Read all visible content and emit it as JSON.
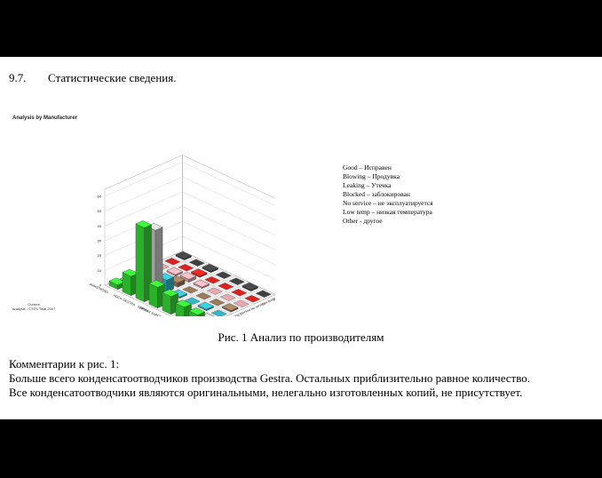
{
  "section": {
    "number": "9.7.",
    "title": "Статистические сведения."
  },
  "figure": {
    "title": "Analysis by Manufacturer",
    "footer_line1": "Current",
    "footer_line2": "Analysis - CTES Total 2007",
    "y_ticks": [
      "0",
      "10",
      "20",
      "30",
      "40",
      "50",
      "60"
    ],
    "right_ticks": [
      "0",
      "10",
      "20",
      "30",
      "40",
      "50"
    ],
    "right_axis_label": "Trap Count",
    "manufacturer_labels": [
      "ARMSTRONG",
      "ADCA",
      "GESTRA",
      "SPIRAX",
      "SPIRAX SARCO",
      "TLV",
      "Other"
    ],
    "condition_labels": [
      "Good",
      "Blowing",
      "Leaking",
      "Blocked",
      "No service",
      "Low temp",
      "Other"
    ],
    "colors": {
      "green": "#33dd33",
      "gray": "#c8c8c8",
      "cyan": "#33b8c8",
      "brown": "#9a7a5a",
      "pink": "#e8a8b0",
      "red": "#dd2020",
      "dark": "#404040"
    }
  },
  "chart_data": {
    "type": "bar",
    "title": "Analysis by Manufacturer",
    "categories": [
      "ARMSTRONG",
      "ADCA",
      "GESTRA",
      "SPIRAX",
      "SPIRAX SARCO",
      "TLV",
      "Other"
    ],
    "series": [
      {
        "name": "Good",
        "values": [
          3,
          13,
          50,
          14,
          12,
          9,
          8
        ]
      },
      {
        "name": "Blowing",
        "values": [
          1,
          0,
          45,
          2,
          1,
          0,
          1
        ]
      },
      {
        "name": "Leaking",
        "values": [
          0,
          1,
          8,
          1,
          0,
          1,
          0
        ]
      },
      {
        "name": "Blocked",
        "values": [
          1,
          0,
          3,
          0,
          0,
          0,
          1
        ]
      },
      {
        "name": "No service",
        "values": [
          0,
          1,
          2,
          1,
          0,
          0,
          0
        ]
      },
      {
        "name": "Low temp",
        "values": [
          0,
          0,
          1,
          0,
          0,
          0,
          0
        ]
      },
      {
        "name": "Other",
        "values": [
          1,
          0,
          1,
          0,
          0,
          1,
          0
        ]
      }
    ],
    "ylim": [
      0,
      60
    ],
    "grid": true
  },
  "legend": [
    "Good – Исправен",
    "Blowing – Продувка",
    "Leaking – Утечка",
    "Blocked – заблокирован",
    "No service – не эксплуатируется",
    "Low temp – низкая температура",
    "Other - другое"
  ],
  "caption": "Рис. 1 Анализ по производителям",
  "comments": {
    "heading": "Комментарии к рис. 1:",
    "line1": "Больше всего конденсатоотводчиков производства Gestra. Остальных приблизительно равное количество.",
    "line2": "Все конденсатоотводчики являются оригинальными, нелегально изготовленных копий, не присутствует."
  }
}
